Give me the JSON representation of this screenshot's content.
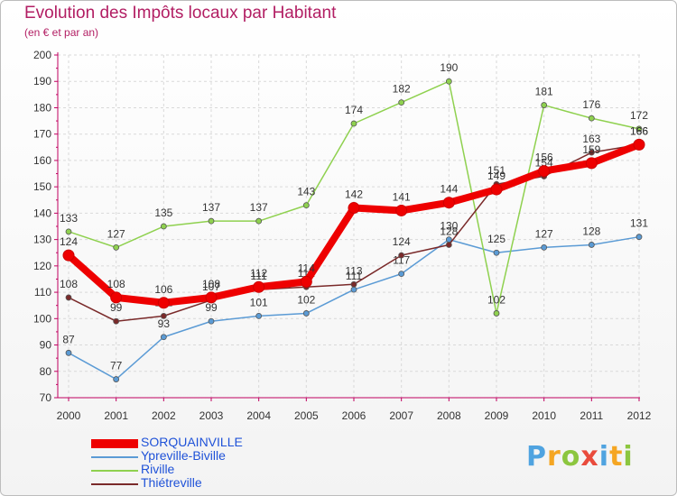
{
  "chart_data": {
    "type": "line",
    "title": "Evolution des Impôts locaux par Habitant",
    "subtitle": "(en € et par an)",
    "xlabel": "",
    "ylabel": "",
    "ylim": [
      70,
      200
    ],
    "yticks": [
      70,
      80,
      90,
      100,
      110,
      120,
      130,
      140,
      150,
      160,
      170,
      180,
      190,
      200
    ],
    "x": [
      "2000",
      "2001",
      "2002",
      "2003",
      "2004",
      "2005",
      "2006",
      "2007",
      "2008",
      "2009",
      "2010",
      "2011",
      "2012"
    ],
    "series": [
      {
        "name": "SORQUAINVILLE",
        "color": "#ee0000",
        "values": [
          124,
          108,
          106,
          108,
          112,
          114,
          142,
          141,
          144,
          149,
          156,
          159,
          166
        ]
      },
      {
        "name": "Ypreville-Biville",
        "color": "#5b9bd5",
        "values": [
          87,
          77,
          93,
          99,
          101,
          102,
          111,
          117,
          130,
          125,
          127,
          128,
          131
        ]
      },
      {
        "name": "Riville",
        "color": "#8fd14f",
        "values": [
          133,
          127,
          135,
          137,
          137,
          143,
          174,
          182,
          190,
          102,
          181,
          176,
          172
        ]
      },
      {
        "name": "Thiétreville",
        "color": "#7a2a2a",
        "values": [
          108,
          99,
          101,
          107,
          111,
          112,
          113,
          124,
          128,
          151,
          154,
          163,
          166
        ]
      }
    ],
    "legend": "bottom-left"
  },
  "brand": {
    "letters": [
      "P",
      "r",
      "o",
      "x",
      "i",
      "t",
      "i"
    ],
    "colors": [
      "#4fa3e0",
      "#f5a623",
      "#8cc63f",
      "#e94b3c",
      "#4fa3e0",
      "#f5a623",
      "#8cc63f"
    ]
  }
}
